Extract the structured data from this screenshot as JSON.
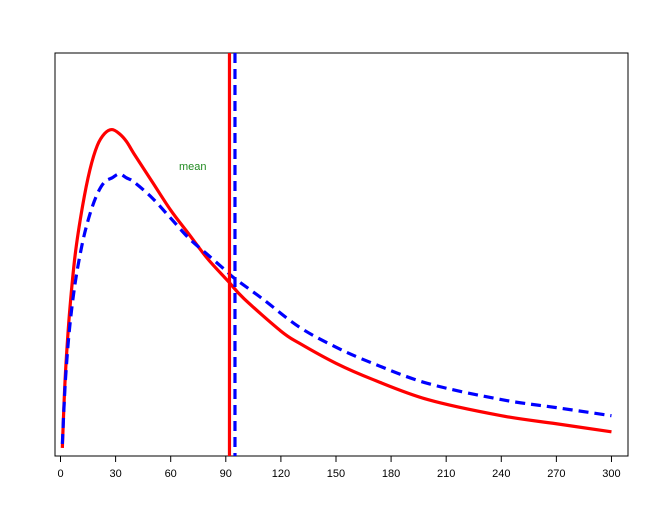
{
  "chart_data": {
    "type": "line",
    "title": "",
    "xlabel": "",
    "ylabel": "",
    "xlim": [
      -3,
      309
    ],
    "ylim": [
      0,
      1.0
    ],
    "x_ticks": [
      0,
      30,
      60,
      90,
      120,
      150,
      180,
      210,
      240,
      270,
      300
    ],
    "x_tick_labels": [
      "0",
      "30",
      "60",
      "90",
      "120",
      "150",
      "180",
      "210",
      "240",
      "270",
      "300"
    ],
    "y_axis_visible": false,
    "grid": false,
    "legend": "none",
    "series": [
      {
        "style": "solid",
        "color": "#ff0000",
        "x": [
          1,
          2,
          3,
          5,
          8,
          12,
          16,
          20,
          24,
          28,
          32,
          36,
          40,
          50,
          60,
          70,
          80,
          90,
          92,
          100,
          120,
          130,
          150,
          170,
          200,
          240,
          270,
          300
        ],
        "y": [
          0.02,
          0.14,
          0.23,
          0.36,
          0.5,
          0.62,
          0.71,
          0.77,
          0.8,
          0.81,
          0.8,
          0.78,
          0.75,
          0.68,
          0.61,
          0.55,
          0.49,
          0.44,
          0.43,
          0.39,
          0.31,
          0.28,
          0.23,
          0.19,
          0.14,
          0.1,
          0.08,
          0.06
        ]
      },
      {
        "style": "dashed",
        "color": "#0000ff",
        "x": [
          1,
          2,
          3,
          5,
          8,
          12,
          16,
          20,
          24,
          28,
          32,
          36,
          40,
          50,
          60,
          70,
          80,
          90,
          95,
          110,
          130,
          150,
          170,
          200,
          240,
          270,
          300
        ],
        "y": [
          0.03,
          0.13,
          0.21,
          0.32,
          0.43,
          0.53,
          0.6,
          0.65,
          0.68,
          0.69,
          0.7,
          0.69,
          0.68,
          0.64,
          0.59,
          0.54,
          0.5,
          0.46,
          0.44,
          0.39,
          0.32,
          0.27,
          0.23,
          0.18,
          0.14,
          0.12,
          0.1
        ]
      }
    ],
    "vlines": [
      {
        "x": 92,
        "style": "solid",
        "color": "#ff0000"
      },
      {
        "x": 95,
        "style": "dashed",
        "color": "#0000ff"
      }
    ],
    "annotations": [
      {
        "text": "mean",
        "x": 72,
        "y": 0.71,
        "color": "#228b22"
      }
    ]
  }
}
